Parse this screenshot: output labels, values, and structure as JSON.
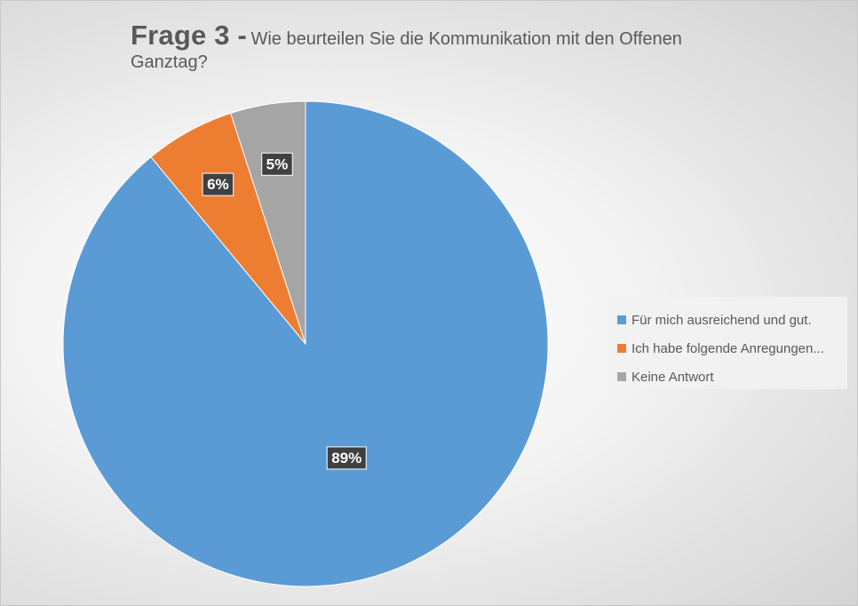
{
  "chart_data": {
    "type": "pie",
    "title": "Frage 3 -",
    "subtitle": "Wie beurteilen Sie die Kommunikation mit den Offenen Ganztag?",
    "categories": [
      "Für mich ausreichend und gut.",
      "Ich habe folgende Anregungen...",
      "Keine Antwort"
    ],
    "values": [
      89,
      6,
      5
    ],
    "data_labels": [
      "89%",
      "6%",
      "5%"
    ],
    "colors": [
      "#5b9bd5",
      "#ed7d31",
      "#a5a5a5"
    ],
    "legend_position": "right"
  }
}
